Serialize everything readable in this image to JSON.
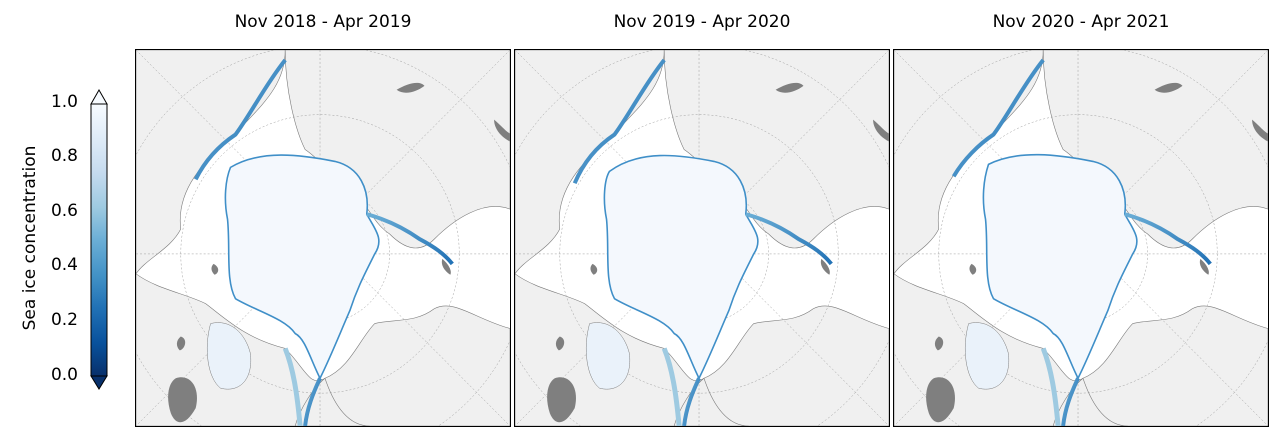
{
  "colorbar": {
    "label": "Sea ice concentration",
    "ticks": [
      "0.0",
      "0.2",
      "0.4",
      "0.6",
      "0.8",
      "1.0"
    ],
    "tick_values": [
      0.0,
      0.2,
      0.4,
      0.6,
      0.8,
      1.0
    ],
    "range": [
      0.0,
      1.0
    ],
    "extend": "both",
    "colormap": [
      "#08306b",
      "#08519c",
      "#2171b5",
      "#4292c6",
      "#6baed6",
      "#9ecae1",
      "#c6dbef",
      "#deebf7",
      "#f7fbff"
    ]
  },
  "panels": [
    {
      "title": "Nov 2018 - Apr 2019"
    },
    {
      "title": "Nov 2019 - Apr 2020"
    },
    {
      "title": "Nov 2020 - Apr 2021"
    }
  ],
  "colors": {
    "land": "#f0f0f0",
    "ice": "#f4f8fd",
    "ice_edge": "#3f8fc8",
    "coast": "#7a7a7a",
    "dark_land": "#7f7f7f",
    "ocean": "#ffffff"
  }
}
